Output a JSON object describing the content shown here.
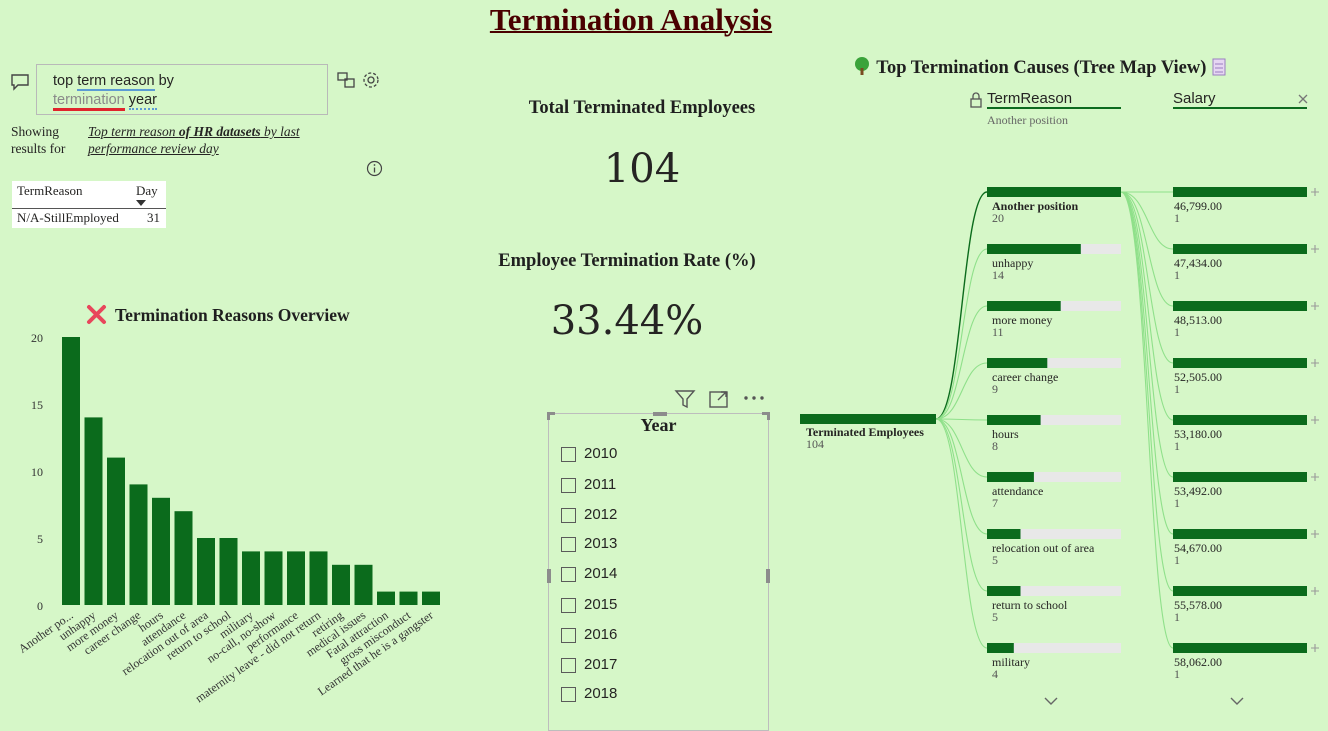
{
  "page_title": "Termination Analysis",
  "qa": {
    "query_parts": [
      "top",
      "term reason",
      "by",
      "termination",
      "year"
    ],
    "showing_label": "Showing results for",
    "showing_link_parts": [
      "Top term reason ",
      "of HR datasets",
      " by last performance review day"
    ]
  },
  "mini_table": {
    "col1": "TermReason",
    "col2": "Day",
    "row": {
      "reason": "N/A-StillEmployed",
      "day": "31"
    }
  },
  "bar_chart": {
    "title": "Termination Reasons Overview",
    "title_icon": "red-x-icon"
  },
  "chart_data": {
    "type": "bar",
    "categories": [
      "Another po...",
      "unhappy",
      "more money",
      "career change",
      "hours",
      "attendance",
      "relocation out of area",
      "return to school",
      "military",
      "no-call, no-show",
      "performance",
      "maternity leave - did not return",
      "retiring",
      "medical issues",
      "Fatal attraction",
      "gross misconduct",
      "Learned that he is a gangster"
    ],
    "values": [
      20,
      14,
      11,
      9,
      8,
      7,
      5,
      5,
      4,
      4,
      4,
      4,
      3,
      3,
      1,
      1,
      1
    ],
    "yticks": [
      0,
      5,
      10,
      15,
      20
    ],
    "ylim": [
      0,
      20
    ],
    "color": "#0b6b1c"
  },
  "kpi": {
    "total_title": "Total Terminated Employees",
    "total_value": "104",
    "rate_title": "Employee Termination Rate (%)",
    "rate_value": "33.44%"
  },
  "slicer": {
    "title": "Year",
    "items": [
      "2010",
      "2011",
      "2012",
      "2013",
      "2014",
      "2015",
      "2016",
      "2017",
      "2018"
    ]
  },
  "tree": {
    "title": "Top Termination Causes (Tree Map View)",
    "level1_label": "TermReason",
    "level1_selected": "Another position",
    "level2_label": "Salary",
    "root_label": "Terminated Employees",
    "root_value": "104",
    "level1": [
      {
        "label": "Another position",
        "value": "20",
        "n": 20
      },
      {
        "label": "unhappy",
        "value": "14",
        "n": 14
      },
      {
        "label": "more money",
        "value": "11",
        "n": 11
      },
      {
        "label": "career change",
        "value": "9",
        "n": 9
      },
      {
        "label": "hours",
        "value": "8",
        "n": 8
      },
      {
        "label": "attendance",
        "value": "7",
        "n": 7
      },
      {
        "label": "relocation out of area",
        "value": "5",
        "n": 5
      },
      {
        "label": "return to school",
        "value": "5",
        "n": 5
      },
      {
        "label": "military",
        "value": "4",
        "n": 4
      }
    ],
    "level2": [
      {
        "label": "46,799.00",
        "value": "1"
      },
      {
        "label": "47,434.00",
        "value": "1"
      },
      {
        "label": "48,513.00",
        "value": "1"
      },
      {
        "label": "52,505.00",
        "value": "1"
      },
      {
        "label": "53,180.00",
        "value": "1"
      },
      {
        "label": "53,492.00",
        "value": "1"
      },
      {
        "label": "54,670.00",
        "value": "1"
      },
      {
        "label": "55,578.00",
        "value": "1"
      },
      {
        "label": "58,062.00",
        "value": "1"
      }
    ]
  },
  "colors": {
    "bar": "#0b6b1c",
    "link": "#8fe08a",
    "track": "#e8e8e8",
    "title": "#4a0000"
  }
}
